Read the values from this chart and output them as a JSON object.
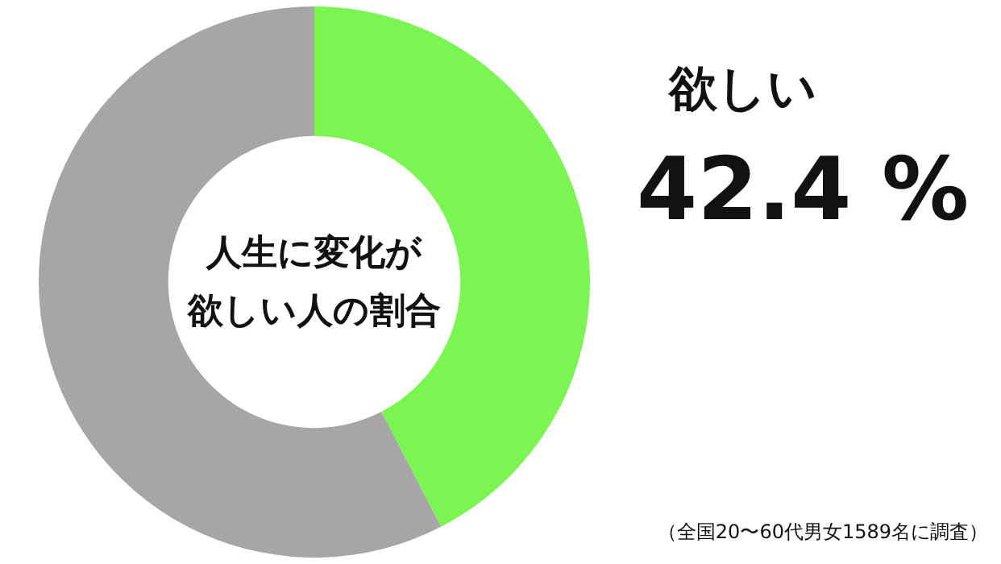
{
  "chart_data": {
    "type": "donut",
    "title": "人生に変化が欲しい人の割合",
    "categories": [
      "欲しい",
      null
    ],
    "values": [
      42.4,
      57.6
    ],
    "colors": [
      "#7af552",
      "#a6a6a6"
    ],
    "value_labels": [
      "42.4 %",
      null
    ],
    "annotations": [
      "（全国20〜60代男女1589名に調査）"
    ],
    "legend": false
  }
}
